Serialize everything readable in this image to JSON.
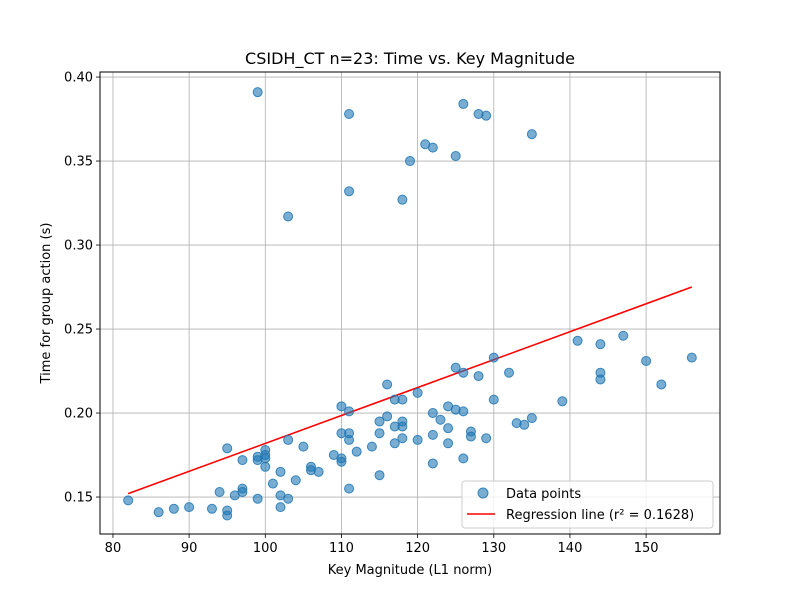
{
  "chart_data": {
    "type": "scatter",
    "title": "CSIDH_CT n=23: Time vs. Key Magnitude",
    "xlabel": "Key Magnitude (L1 norm)",
    "ylabel": "Time for group action (s)",
    "xlim": [
      78.3,
      159.7
    ],
    "ylim": [
      0.128,
      0.403
    ],
    "x_ticks": [
      80,
      90,
      100,
      110,
      120,
      130,
      140,
      150
    ],
    "y_ticks": [
      0.15,
      0.2,
      0.25,
      0.3,
      0.35,
      0.4
    ],
    "x_tick_labels": [
      "80",
      "90",
      "100",
      "110",
      "120",
      "130",
      "140",
      "150"
    ],
    "y_tick_labels": [
      "0.15",
      "0.20",
      "0.25",
      "0.30",
      "0.35",
      "0.40"
    ],
    "grid": true,
    "legend_position": "lower-right",
    "series": [
      {
        "name": "Data points",
        "kind": "scatter",
        "color": "#1f77b4",
        "points": [
          [
            82,
            0.148
          ],
          [
            86,
            0.141
          ],
          [
            88,
            0.143
          ],
          [
            90,
            0.144
          ],
          [
            93,
            0.143
          ],
          [
            94,
            0.153
          ],
          [
            95,
            0.142
          ],
          [
            95,
            0.139
          ],
          [
            95,
            0.179
          ],
          [
            96,
            0.151
          ],
          [
            97,
            0.155
          ],
          [
            97,
            0.153
          ],
          [
            97,
            0.172
          ],
          [
            99,
            0.174
          ],
          [
            99,
            0.172
          ],
          [
            99,
            0.149
          ],
          [
            99,
            0.391
          ],
          [
            100,
            0.178
          ],
          [
            100,
            0.175
          ],
          [
            100,
            0.173
          ],
          [
            100,
            0.168
          ],
          [
            101,
            0.158
          ],
          [
            102,
            0.165
          ],
          [
            102,
            0.151
          ],
          [
            102,
            0.144
          ],
          [
            103,
            0.184
          ],
          [
            103,
            0.149
          ],
          [
            103,
            0.317
          ],
          [
            104,
            0.16
          ],
          [
            105,
            0.18
          ],
          [
            106,
            0.168
          ],
          [
            106,
            0.166
          ],
          [
            107,
            0.165
          ],
          [
            109,
            0.175
          ],
          [
            110,
            0.204
          ],
          [
            110,
            0.188
          ],
          [
            110,
            0.173
          ],
          [
            110,
            0.171
          ],
          [
            111,
            0.201
          ],
          [
            111,
            0.188
          ],
          [
            111,
            0.184
          ],
          [
            111,
            0.155
          ],
          [
            111,
            0.332
          ],
          [
            111,
            0.378
          ],
          [
            112,
            0.177
          ],
          [
            114,
            0.18
          ],
          [
            115,
            0.195
          ],
          [
            115,
            0.188
          ],
          [
            115,
            0.163
          ],
          [
            116,
            0.217
          ],
          [
            116,
            0.198
          ],
          [
            117,
            0.208
          ],
          [
            117,
            0.192
          ],
          [
            117,
            0.182
          ],
          [
            118,
            0.208
          ],
          [
            118,
            0.195
          ],
          [
            118,
            0.192
          ],
          [
            118,
            0.185
          ],
          [
            118,
            0.327
          ],
          [
            119,
            0.35
          ],
          [
            120,
            0.212
          ],
          [
            120,
            0.184
          ],
          [
            121,
            0.36
          ],
          [
            122,
            0.2
          ],
          [
            122,
            0.187
          ],
          [
            122,
            0.17
          ],
          [
            122,
            0.358
          ],
          [
            123,
            0.196
          ],
          [
            124,
            0.204
          ],
          [
            124,
            0.191
          ],
          [
            124,
            0.182
          ],
          [
            125,
            0.227
          ],
          [
            125,
            0.202
          ],
          [
            125,
            0.353
          ],
          [
            126,
            0.224
          ],
          [
            126,
            0.201
          ],
          [
            126,
            0.173
          ],
          [
            126,
            0.384
          ],
          [
            127,
            0.189
          ],
          [
            127,
            0.186
          ],
          [
            128,
            0.222
          ],
          [
            128,
            0.378
          ],
          [
            129,
            0.185
          ],
          [
            129,
            0.377
          ],
          [
            130,
            0.233
          ],
          [
            130,
            0.208
          ],
          [
            132,
            0.224
          ],
          [
            133,
            0.194
          ],
          [
            134,
            0.193
          ],
          [
            135,
            0.197
          ],
          [
            135,
            0.366
          ],
          [
            139,
            0.207
          ],
          [
            141,
            0.243
          ],
          [
            144,
            0.241
          ],
          [
            144,
            0.224
          ],
          [
            144,
            0.22
          ],
          [
            147,
            0.246
          ],
          [
            150,
            0.231
          ],
          [
            152,
            0.217
          ],
          [
            156,
            0.233
          ]
        ]
      },
      {
        "name": "Regression line (r² = 0.1628)",
        "kind": "line",
        "color": "#ff0000",
        "x": [
          82,
          156
        ],
        "y": [
          0.152,
          0.275
        ]
      }
    ]
  }
}
